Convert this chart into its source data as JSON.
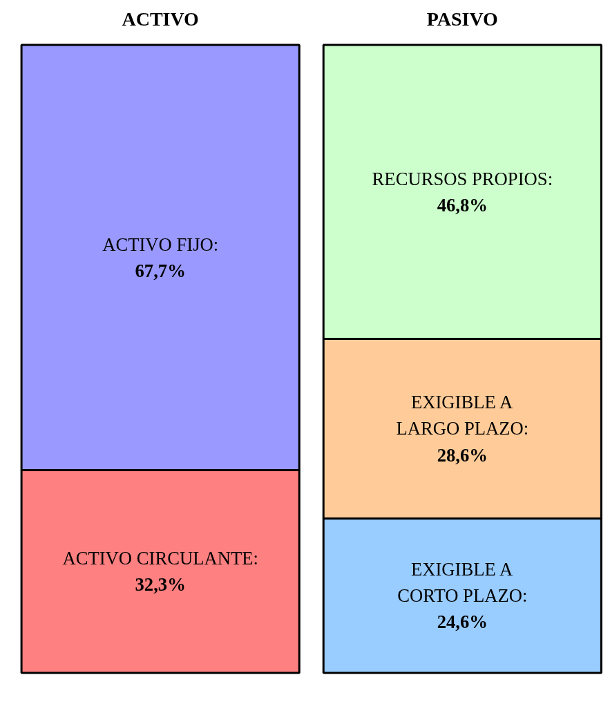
{
  "chart_data": {
    "type": "bar",
    "stacked": true,
    "categories": [
      "ACTIVO",
      "PASIVO"
    ],
    "series": [
      {
        "name": "ACTIVO CIRCULANTE:",
        "color": "#ff8080",
        "values": [
          32.3,
          null
        ],
        "value_labels": [
          "32,3%",
          null
        ]
      },
      {
        "name": "EXIGIBLE A CORTO PLAZO:",
        "color": "#99ccff",
        "values": [
          null,
          24.6
        ],
        "value_labels": [
          null,
          "24,6%"
        ]
      },
      {
        "name": "EXIGIBLE A LARGO PLAZO:",
        "color": "#ffcc99",
        "values": [
          null,
          28.6
        ],
        "value_labels": [
          null,
          "28,6%"
        ]
      },
      {
        "name": "ACTIVO FIJO:",
        "color": "#9999ff",
        "values": [
          67.7,
          null
        ],
        "value_labels": [
          "67,7%",
          null
        ]
      },
      {
        "name": "RECURSOS PROPIOS:",
        "color": "#ccffcc",
        "values": [
          null,
          46.8
        ],
        "value_labels": [
          null,
          "46,8%"
        ]
      }
    ]
  }
}
